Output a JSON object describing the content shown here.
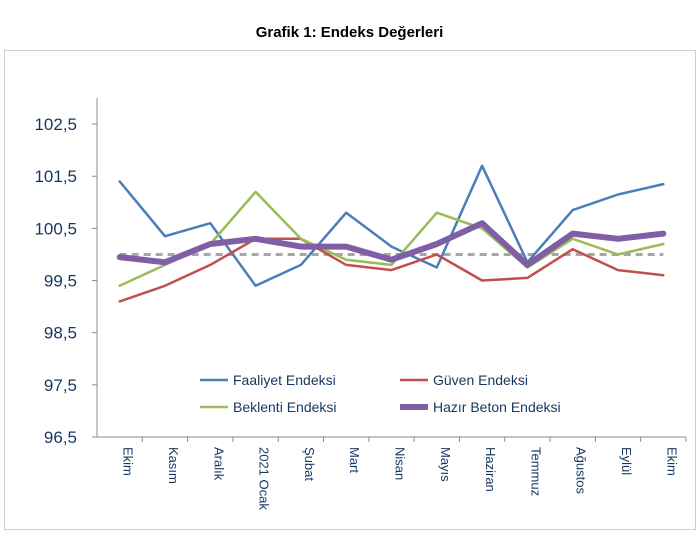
{
  "chart_data": {
    "type": "line",
    "title": "Grafik 1: Endeks Değerleri",
    "categories": [
      "Ekim",
      "Kasım",
      "Aralık",
      "2021 Ocak",
      "Şubat",
      "Mart",
      "Nisan",
      "Mayıs",
      "Haziran",
      "Temmuz",
      "Ağustos",
      "Eylül",
      "Ekim"
    ],
    "ylim": [
      96.5,
      103.0
    ],
    "yticks": [
      "96,5",
      "97,5",
      "98,5",
      "99,5",
      "100,5",
      "101,5",
      "102,5"
    ],
    "ytick_values": [
      96.5,
      97.5,
      98.5,
      99.5,
      100.5,
      101.5,
      102.5
    ],
    "reference_line": 100,
    "legend_placement": "bottom-center",
    "series": [
      {
        "name": "Faaliyet Endeksi",
        "color": "#4a7ebb",
        "width": 2.5,
        "values": [
          101.4,
          100.35,
          100.6,
          99.4,
          99.8,
          100.8,
          100.15,
          99.75,
          101.7,
          99.85,
          100.85,
          101.15,
          101.35
        ]
      },
      {
        "name": "Güven Endeksi",
        "color": "#c0504d",
        "width": 2.5,
        "values": [
          99.1,
          99.4,
          99.8,
          100.3,
          100.3,
          99.8,
          99.7,
          100.0,
          99.5,
          99.55,
          100.1,
          99.7,
          99.6
        ]
      },
      {
        "name": "Beklenti Endeksi",
        "color": "#9bbb59",
        "width": 2.5,
        "values": [
          99.4,
          99.8,
          100.2,
          101.2,
          100.3,
          99.9,
          99.8,
          100.8,
          100.5,
          99.75,
          100.3,
          100.0,
          100.2
        ]
      },
      {
        "name": "Hazır Beton Endeksi",
        "color": "#7f5ea5",
        "width": 6,
        "values": [
          99.95,
          99.85,
          100.2,
          100.3,
          100.15,
          100.15,
          99.9,
          100.2,
          100.6,
          99.8,
          100.4,
          100.3,
          100.4
        ]
      }
    ]
  }
}
